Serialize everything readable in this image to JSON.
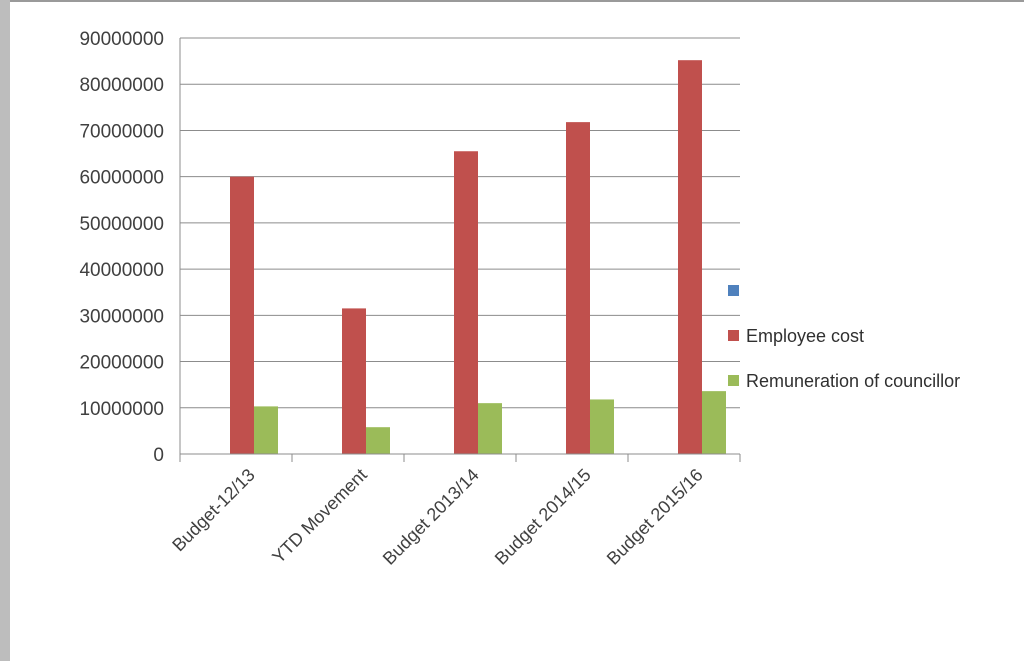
{
  "chart_data": {
    "type": "bar",
    "categories": [
      "Budget-12/13",
      "YTD Movement",
      "Budget 2013/14",
      "Budget 2014/15",
      "Budget 2015/16"
    ],
    "series": [
      {
        "name": "",
        "color": "#4f81bd",
        "values": [
          0,
          0,
          0,
          0,
          0
        ]
      },
      {
        "name": "Employee cost",
        "color": "#c0504d",
        "values": [
          60000000,
          31500000,
          65500000,
          71800000,
          85200000
        ]
      },
      {
        "name": "Remuneration of councillor",
        "color": "#9bbb59",
        "values": [
          10300000,
          5800000,
          11000000,
          11800000,
          13600000
        ]
      }
    ],
    "yticks": [
      "0",
      "10000000",
      "20000000",
      "30000000",
      "40000000",
      "50000000",
      "60000000",
      "70000000",
      "80000000",
      "90000000"
    ],
    "ylim": [
      0,
      90000000
    ],
    "grid": true,
    "legend_position": "right"
  }
}
